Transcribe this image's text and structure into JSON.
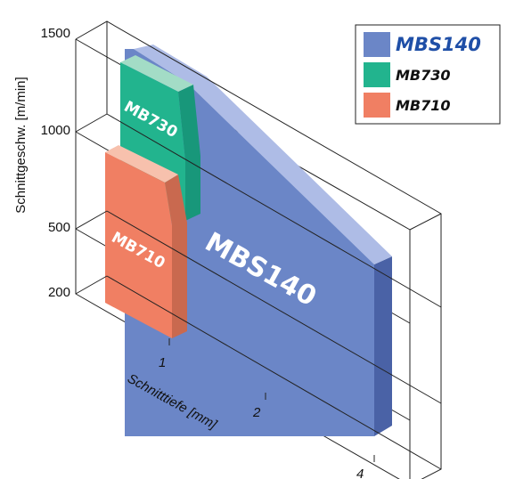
{
  "chart_data": {
    "type": "area",
    "projection": "3d-stacked-blocks",
    "xlabel": "Schnitttiefe [mm]",
    "ylabel": "Schnittgeschw. [m/min]",
    "x_ticks": [
      "1",
      "2",
      "4"
    ],
    "y_ticks": [
      "200",
      "500",
      "1000",
      "1500"
    ],
    "ylim": [
      200,
      1500
    ],
    "legend_position": "top-right",
    "series": [
      {
        "name": "MBS140",
        "label": "MBS140",
        "color": "#6b86c7",
        "points": [
          {
            "depth": 0.5,
            "speed": 1500
          },
          {
            "depth": 1,
            "speed": 1300
          },
          {
            "depth": 4,
            "speed": 200
          }
        ]
      },
      {
        "name": "MB730",
        "label": "MB730",
        "color": "#22b48e",
        "points": [
          {
            "depth": 0.1,
            "speed": 1300
          },
          {
            "depth": 0.6,
            "speed": 1200
          },
          {
            "depth": 0.8,
            "speed": 600
          }
        ]
      },
      {
        "name": "MB710",
        "label": "MB710",
        "color": "#f07f63",
        "points": [
          {
            "depth": 0.1,
            "speed": 900
          },
          {
            "depth": 0.6,
            "speed": 800
          },
          {
            "depth": 0.8,
            "speed": 200
          }
        ]
      }
    ]
  }
}
